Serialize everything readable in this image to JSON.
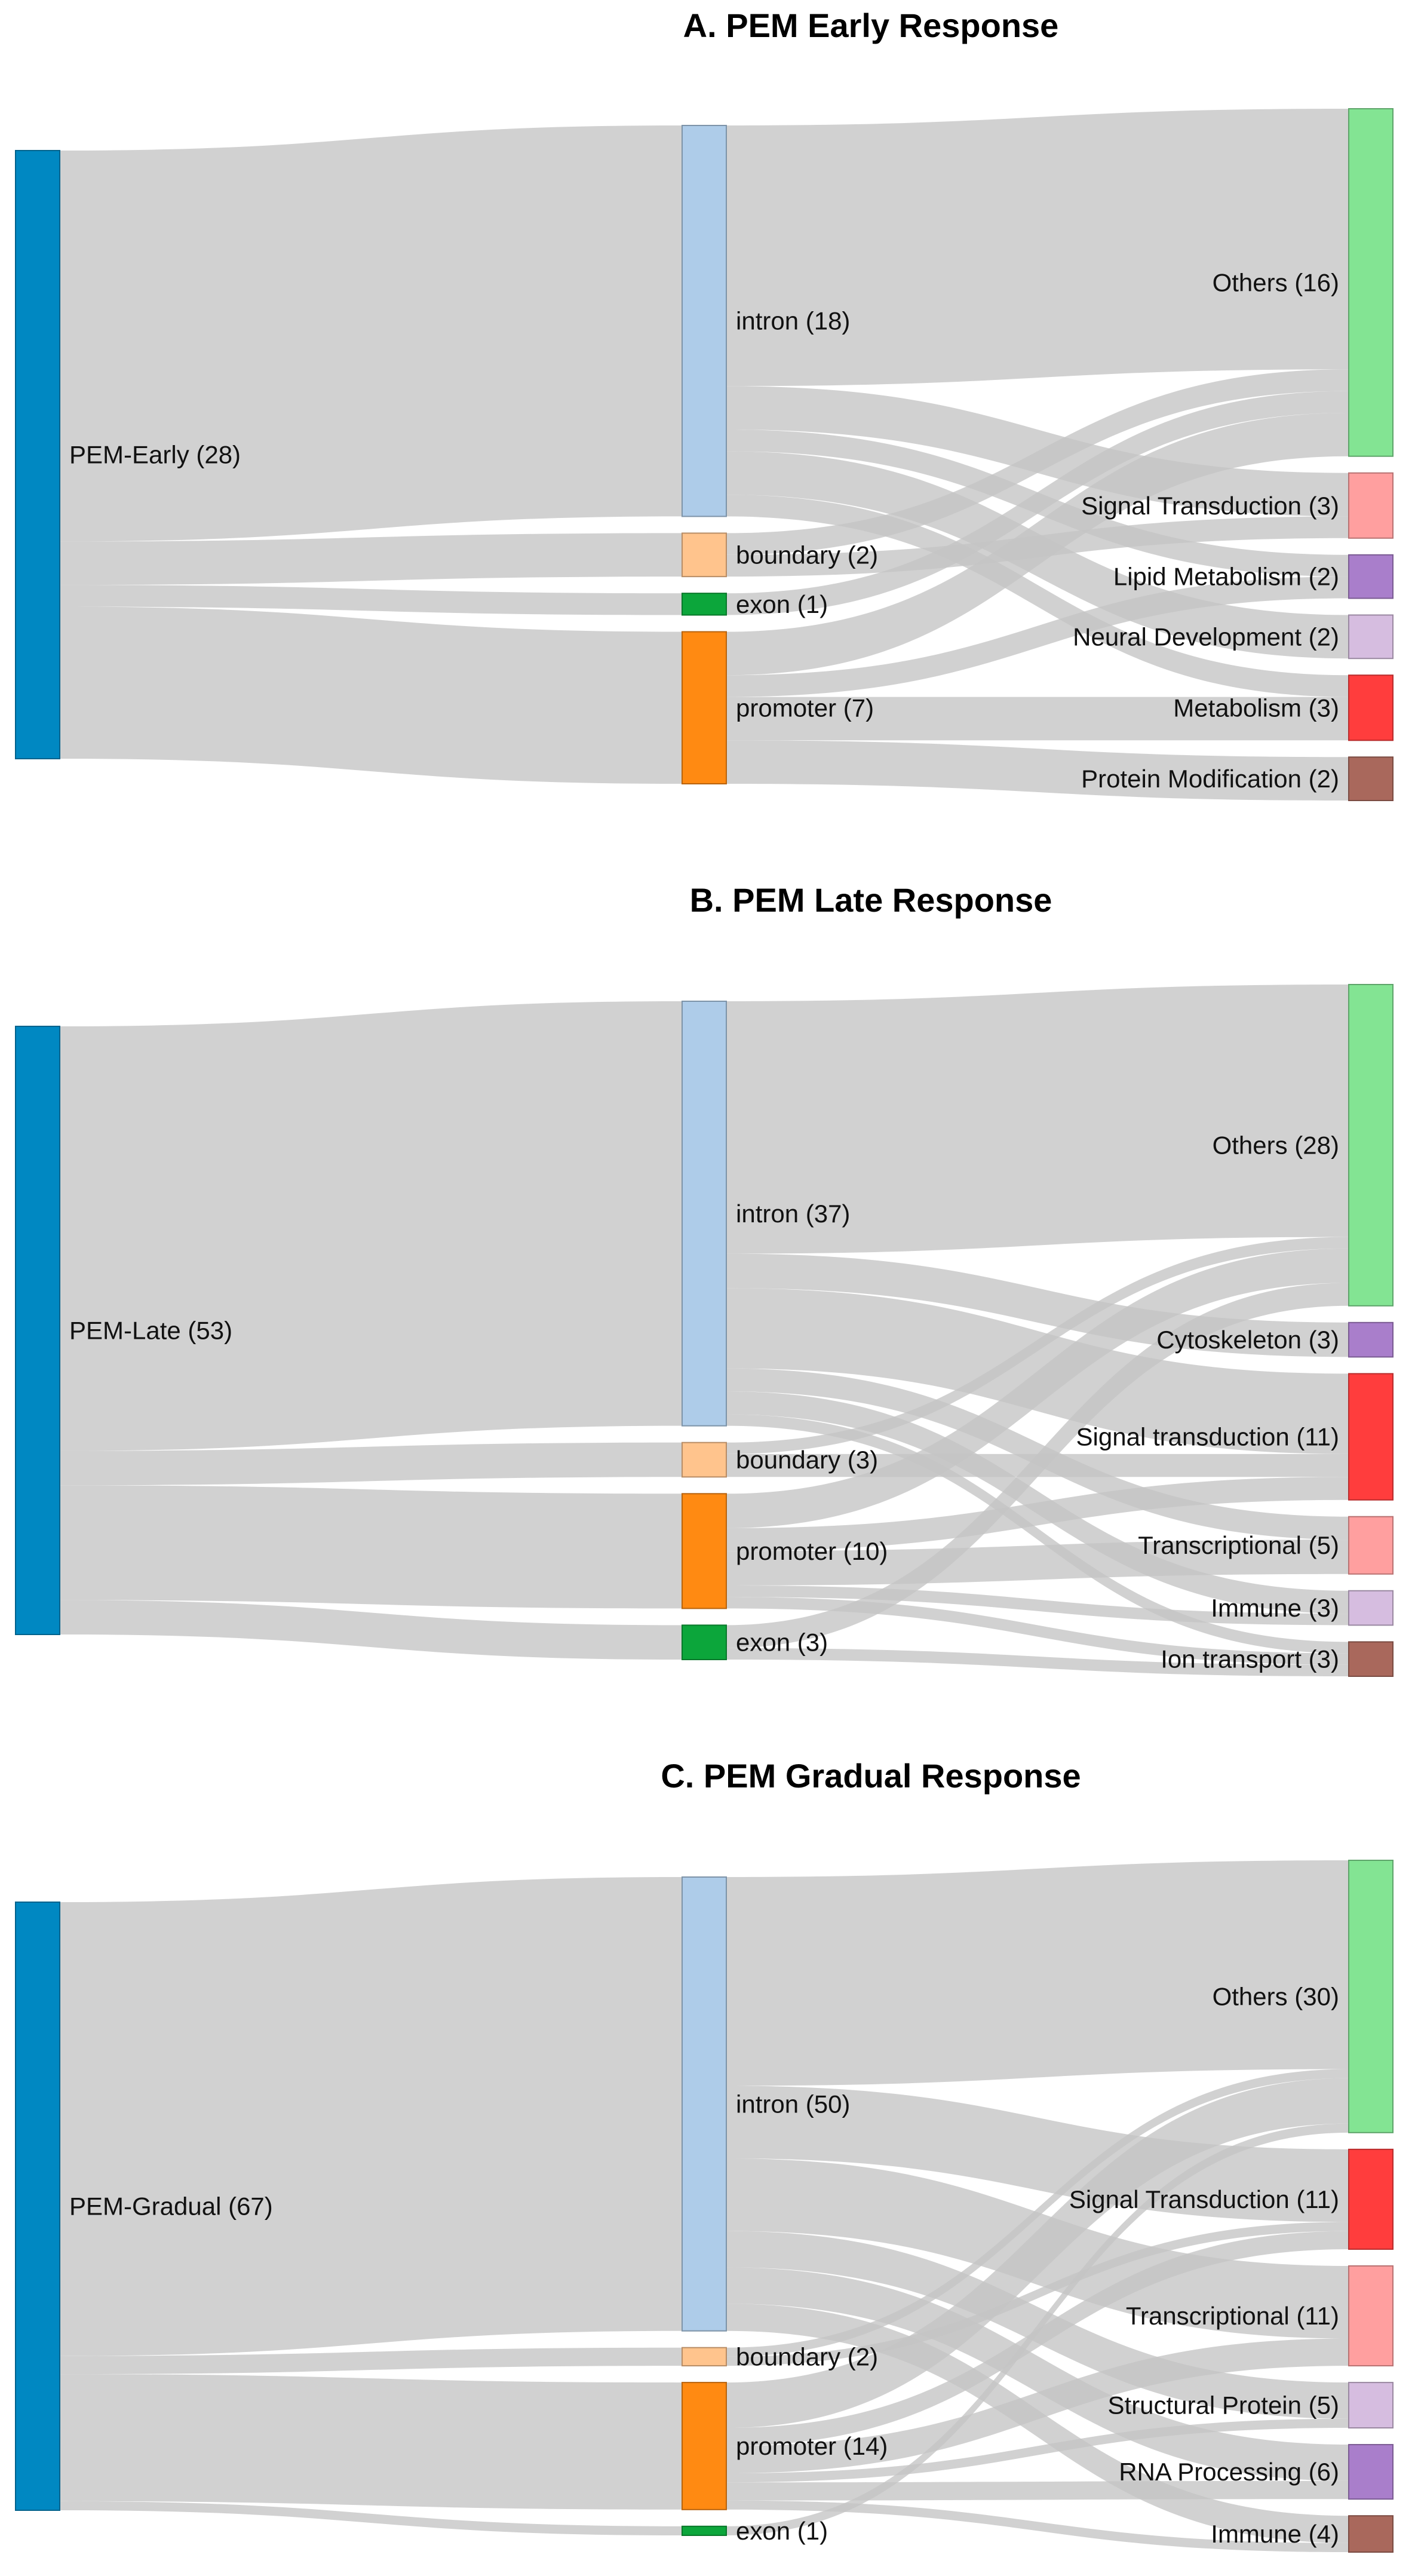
{
  "panels": [
    {
      "title": "A. PEM Early Response",
      "nodes": [
        {
          "id": "src",
          "label": "PEM-Early (28)",
          "color": "#0088c2"
        },
        {
          "id": "intron",
          "label": "intron (18)",
          "color": "#aecce9"
        },
        {
          "id": "boundary",
          "label": "boundary (2)",
          "color": "#ffc48d"
        },
        {
          "id": "exon",
          "label": "exon (1)",
          "color": "#0ca63b"
        },
        {
          "id": "promoter",
          "label": "promoter (7)",
          "color": "#ff8a12"
        },
        {
          "id": "others",
          "label": "Others (16)",
          "color": "#83e493"
        },
        {
          "id": "signal",
          "label": "Signal Transduction (3)",
          "color": "#ff9f9f"
        },
        {
          "id": "lipid",
          "label": "Lipid Metabolism (2)",
          "color": "#a97ecb"
        },
        {
          "id": "neural",
          "label": "Neural Development (2)",
          "color": "#d6bde0"
        },
        {
          "id": "metab",
          "label": "Metabolism (3)",
          "color": "#ff3d3d"
        },
        {
          "id": "protein",
          "label": "Protein Modification (2)",
          "color": "#a9685c"
        }
      ],
      "links": [
        {
          "source": "src",
          "target": "intron",
          "value": 18
        },
        {
          "source": "src",
          "target": "boundary",
          "value": 2
        },
        {
          "source": "src",
          "target": "exon",
          "value": 1
        },
        {
          "source": "src",
          "target": "promoter",
          "value": 7
        },
        {
          "source": "intron",
          "target": "others",
          "value": 12
        },
        {
          "source": "intron",
          "target": "signal",
          "value": 2
        },
        {
          "source": "intron",
          "target": "lipid",
          "value": 1
        },
        {
          "source": "intron",
          "target": "neural",
          "value": 2
        },
        {
          "source": "intron",
          "target": "metab",
          "value": 1
        },
        {
          "source": "boundary",
          "target": "others",
          "value": 1
        },
        {
          "source": "boundary",
          "target": "signal",
          "value": 1
        },
        {
          "source": "exon",
          "target": "others",
          "value": 1
        },
        {
          "source": "promoter",
          "target": "others",
          "value": 2
        },
        {
          "source": "promoter",
          "target": "lipid",
          "value": 1
        },
        {
          "source": "promoter",
          "target": "metab",
          "value": 2
        },
        {
          "source": "promoter",
          "target": "protein",
          "value": 2
        }
      ]
    },
    {
      "title": "B. PEM Late Response",
      "nodes": [
        {
          "id": "src",
          "label": "PEM-Late (53)",
          "color": "#0088c2"
        },
        {
          "id": "intron",
          "label": "intron (37)",
          "color": "#aecce9"
        },
        {
          "id": "boundary",
          "label": "boundary (3)",
          "color": "#ffc48d"
        },
        {
          "id": "promoter",
          "label": "promoter (10)",
          "color": "#ff8a12"
        },
        {
          "id": "exon",
          "label": "exon (3)",
          "color": "#0ca63b"
        },
        {
          "id": "others",
          "label": "Others (28)",
          "color": "#83e493"
        },
        {
          "id": "cyto",
          "label": "Cytoskeleton (3)",
          "color": "#a97ecb"
        },
        {
          "id": "signal",
          "label": "Signal transduction (11)",
          "color": "#ff3d3d"
        },
        {
          "id": "transc",
          "label": "Transcriptional (5)",
          "color": "#ff9f9f"
        },
        {
          "id": "immune",
          "label": "Immune (3)",
          "color": "#d6bde0"
        },
        {
          "id": "ion",
          "label": "Ion transport (3)",
          "color": "#a9685c"
        }
      ],
      "links": [
        {
          "source": "src",
          "target": "intron",
          "value": 37
        },
        {
          "source": "src",
          "target": "boundary",
          "value": 3
        },
        {
          "source": "src",
          "target": "promoter",
          "value": 10
        },
        {
          "source": "src",
          "target": "exon",
          "value": 3
        },
        {
          "source": "intron",
          "target": "others",
          "value": 22
        },
        {
          "source": "intron",
          "target": "cyto",
          "value": 3
        },
        {
          "source": "intron",
          "target": "signal",
          "value": 7
        },
        {
          "source": "intron",
          "target": "transc",
          "value": 2
        },
        {
          "source": "intron",
          "target": "immune",
          "value": 2
        },
        {
          "source": "intron",
          "target": "ion",
          "value": 1
        },
        {
          "source": "boundary",
          "target": "others",
          "value": 1
        },
        {
          "source": "boundary",
          "target": "signal",
          "value": 2
        },
        {
          "source": "promoter",
          "target": "others",
          "value": 3
        },
        {
          "source": "promoter",
          "target": "signal",
          "value": 2
        },
        {
          "source": "promoter",
          "target": "transc",
          "value": 3
        },
        {
          "source": "promoter",
          "target": "immune",
          "value": 1
        },
        {
          "source": "promoter",
          "target": "ion",
          "value": 1
        },
        {
          "source": "exon",
          "target": "others",
          "value": 2
        },
        {
          "source": "exon",
          "target": "ion",
          "value": 1
        }
      ]
    },
    {
      "title": "C. PEM Gradual Response",
      "nodes": [
        {
          "id": "src",
          "label": "PEM-Gradual (67)",
          "color": "#0088c2"
        },
        {
          "id": "intron",
          "label": "intron (50)",
          "color": "#aecce9"
        },
        {
          "id": "boundary",
          "label": "boundary (2)",
          "color": "#ffc48d"
        },
        {
          "id": "promoter",
          "label": "promoter (14)",
          "color": "#ff8a12"
        },
        {
          "id": "exon",
          "label": "exon (1)",
          "color": "#0ca63b"
        },
        {
          "id": "others",
          "label": "Others (30)",
          "color": "#83e493"
        },
        {
          "id": "signal",
          "label": "Signal Transduction (11)",
          "color": "#ff3d3d"
        },
        {
          "id": "transc",
          "label": "Transcriptional (11)",
          "color": "#ff9f9f"
        },
        {
          "id": "struct",
          "label": "Structural Protein (5)",
          "color": "#d6bde0"
        },
        {
          "id": "rna",
          "label": "RNA Processing (6)",
          "color": "#a97ecb"
        },
        {
          "id": "immune",
          "label": "Immune (4)",
          "color": "#a9685c"
        }
      ],
      "links": [
        {
          "source": "src",
          "target": "intron",
          "value": 50
        },
        {
          "source": "src",
          "target": "boundary",
          "value": 2
        },
        {
          "source": "src",
          "target": "promoter",
          "value": 14
        },
        {
          "source": "src",
          "target": "exon",
          "value": 1
        },
        {
          "source": "intron",
          "target": "others",
          "value": 23
        },
        {
          "source": "intron",
          "target": "signal",
          "value": 8
        },
        {
          "source": "intron",
          "target": "transc",
          "value": 8
        },
        {
          "source": "intron",
          "target": "struct",
          "value": 4
        },
        {
          "source": "intron",
          "target": "rna",
          "value": 4
        },
        {
          "source": "intron",
          "target": "immune",
          "value": 3
        },
        {
          "source": "boundary",
          "target": "others",
          "value": 1
        },
        {
          "source": "boundary",
          "target": "signal",
          "value": 1
        },
        {
          "source": "promoter",
          "target": "others",
          "value": 5
        },
        {
          "source": "promoter",
          "target": "signal",
          "value": 2
        },
        {
          "source": "promoter",
          "target": "transc",
          "value": 3
        },
        {
          "source": "promoter",
          "target": "struct",
          "value": 1
        },
        {
          "source": "promoter",
          "target": "rna",
          "value": 2
        },
        {
          "source": "promoter",
          "target": "immune",
          "value": 1
        },
        {
          "source": "exon",
          "target": "others",
          "value": 1
        }
      ]
    }
  ]
}
